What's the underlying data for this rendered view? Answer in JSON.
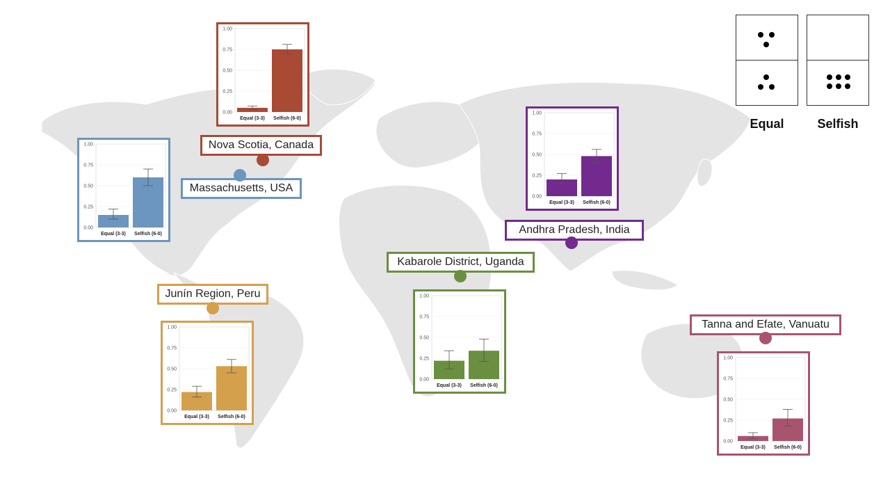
{
  "legend": {
    "equal_label": "Equal",
    "selfish_label": "Selfish"
  },
  "chart_data": [
    {
      "id": "nova-scotia",
      "type": "bar",
      "location": "Nova Scotia, Canada",
      "color": "#a94a35",
      "categories": [
        "Equal (3-3)",
        "Selfish (6-0)"
      ],
      "values": [
        0.05,
        0.75
      ],
      "error": [
        [
          0.03,
          0.07
        ],
        [
          0.7,
          0.81
        ]
      ],
      "ylim": [
        0,
        1
      ],
      "yticks": [
        "0.00",
        "0.25",
        "0.50",
        "0.75",
        "1.00"
      ]
    },
    {
      "id": "massachusetts",
      "type": "bar",
      "location": "Massachusetts, USA",
      "color": "#6c95bf",
      "categories": [
        "Equal (3-3)",
        "Selfish (6-0)"
      ],
      "values": [
        0.15,
        0.6
      ],
      "error": [
        [
          0.1,
          0.22
        ],
        [
          0.5,
          0.7
        ]
      ],
      "ylim": [
        0,
        1
      ],
      "yticks": [
        "0.00",
        "0.25",
        "0.50",
        "0.75",
        "1.00"
      ]
    },
    {
      "id": "andhra-pradesh",
      "type": "bar",
      "location": "Andhra Pradesh, India",
      "color": "#722a8e",
      "categories": [
        "Equal (3-3)",
        "Selfish (6-0)"
      ],
      "values": [
        0.2,
        0.48
      ],
      "error": [
        [
          0.15,
          0.27
        ],
        [
          0.4,
          0.56
        ]
      ],
      "ylim": [
        0,
        1
      ],
      "yticks": [
        "0.00",
        "0.25",
        "0.50",
        "0.75",
        "1.00"
      ]
    },
    {
      "id": "kabarole",
      "type": "bar",
      "location": "Kabarole District, Uganda",
      "color": "#6a8f40",
      "categories": [
        "Equal (3-3)",
        "Selfish (6-0)"
      ],
      "values": [
        0.22,
        0.34
      ],
      "error": [
        [
          0.12,
          0.34
        ],
        [
          0.21,
          0.48
        ]
      ],
      "ylim": [
        0,
        1
      ],
      "yticks": [
        "0.00",
        "0.25",
        "0.50",
        "0.75",
        "1.00"
      ]
    },
    {
      "id": "junin",
      "type": "bar",
      "location": "Junín Region, Peru",
      "color": "#d4a04c",
      "categories": [
        "Equal (3-3)",
        "Selfish (6-0)"
      ],
      "values": [
        0.22,
        0.53
      ],
      "error": [
        [
          0.16,
          0.29
        ],
        [
          0.45,
          0.61
        ]
      ],
      "ylim": [
        0,
        1
      ],
      "yticks": [
        "0.00",
        "0.25",
        "0.50",
        "0.75",
        "1.00"
      ]
    },
    {
      "id": "vanuatu",
      "type": "bar",
      "location": "Tanna and Efate, Vanuatu",
      "color": "#a8546f",
      "categories": [
        "Equal (3-3)",
        "Selfish (6-0)"
      ],
      "values": [
        0.06,
        0.27
      ],
      "error": [
        [
          0.03,
          0.1
        ],
        [
          0.18,
          0.38
        ]
      ],
      "ylim": [
        0,
        1
      ],
      "yticks": [
        "0.00",
        "0.25",
        "0.50",
        "0.75",
        "1.00"
      ]
    }
  ]
}
